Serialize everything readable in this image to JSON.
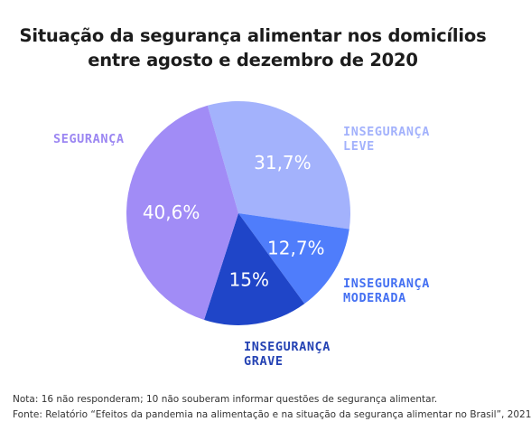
{
  "title_line1": "Situação da segurança alimentar nos domicílios",
  "title_line2": "entre agosto e dezembro de 2020",
  "chart_data": {
    "type": "pie",
    "slices": [
      {
        "name": "INSEGURANÇA LEVE",
        "label_lines": [
          "INSEGURANÇA",
          "LEVE"
        ],
        "value": 31.7,
        "display": "31,7%",
        "color": "#a3b2fc",
        "label_color": "#a3b2fc"
      },
      {
        "name": "INSEGURANÇA MODERADA",
        "label_lines": [
          "INSEGURANÇA",
          "MODERADA"
        ],
        "value": 12.7,
        "display": "12,7%",
        "color": "#4f7dfb",
        "label_color": "#4470f2"
      },
      {
        "name": "INSEGURANÇA GRAVE",
        "label_lines": [
          "INSEGURANÇA",
          "GRAVE"
        ],
        "value": 15,
        "display": "15%",
        "color": "#1f45c8",
        "label_color": "#2442b3"
      },
      {
        "name": "SEGURANÇA",
        "label_lines": [
          "SEGURANÇA"
        ],
        "value": 40.6,
        "display": "40,6%",
        "color": "#a18cf6",
        "label_color": "#9b86f2"
      }
    ]
  },
  "note": "Nota: 16 não responderam; 10 não souberam informar questões de segurança alimentar.",
  "source": "Fonte: Relatório “Efeitos da pandemia na alimentação e na situação da segurança alimentar no Brasil”, 2021"
}
